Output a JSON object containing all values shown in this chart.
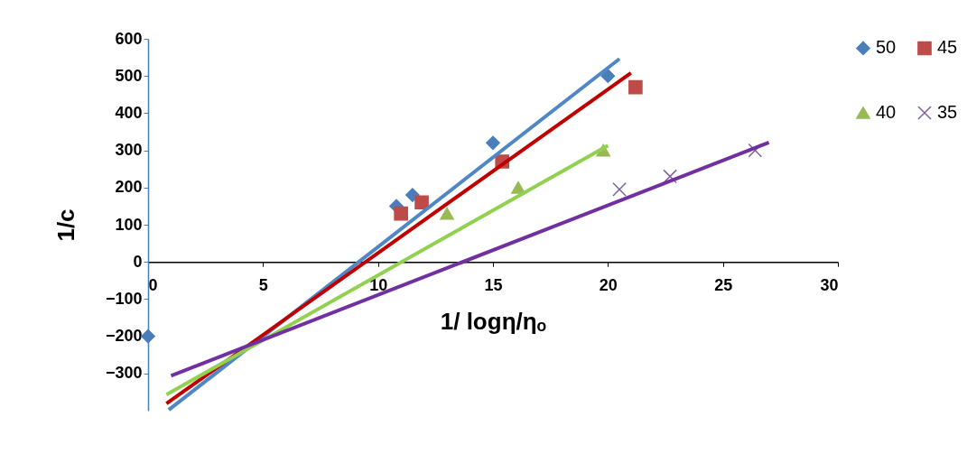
{
  "chart_data": {
    "type": "scatter",
    "xlabel": "1/ logη/ηₒ",
    "ylabel": "1/c",
    "xlim": [
      0,
      30
    ],
    "xticks": [
      0,
      5,
      10,
      15,
      20,
      25,
      30
    ],
    "ylim": [
      -400,
      600
    ],
    "yticks": [
      -300,
      -200,
      -100,
      0,
      100,
      200,
      300,
      400,
      500,
      600
    ],
    "grid": false,
    "legend": "top right",
    "series": [
      {
        "name": "50",
        "type": "scatter",
        "marker": "diamond",
        "color": "#4a7ebb",
        "x": [
          0,
          10.8,
          11.5,
          15,
          20
        ],
        "values": [
          -200,
          150,
          180,
          320,
          500
        ]
      },
      {
        "name": "45",
        "type": "scatter",
        "marker": "square",
        "color": "#be4b48",
        "x": [
          11,
          11.9,
          15.4,
          21.2
        ],
        "values": [
          130,
          160,
          270,
          470
        ]
      },
      {
        "name": "40",
        "type": "scatter",
        "marker": "triangle",
        "color": "#98b954",
        "x": [
          13,
          16.1,
          19.8
        ],
        "values": [
          130,
          200,
          300
        ]
      },
      {
        "name": "35",
        "type": "scatter",
        "marker": "cross",
        "color": "#7d60a0",
        "x": [
          20.5,
          22.7,
          26.4
        ],
        "values": [
          195,
          230,
          300
        ]
      },
      {
        "type": "line",
        "color": "#4f86c6",
        "x": [
          0.9,
          20.5
        ],
        "values": [
          -398,
          546
        ]
      },
      {
        "type": "line",
        "color": "#c00000",
        "x": [
          0.8,
          21
        ],
        "values": [
          -381,
          508
        ]
      },
      {
        "type": "line",
        "color": "#92d050",
        "x": [
          0.8,
          20
        ],
        "values": [
          -357,
          313
        ]
      },
      {
        "type": "line",
        "color": "#7030a0",
        "x": [
          1,
          27
        ],
        "values": [
          -306,
          321
        ]
      }
    ]
  }
}
